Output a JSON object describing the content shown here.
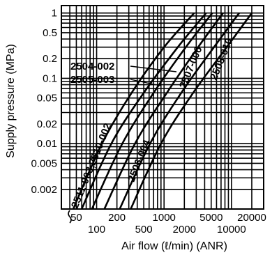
{
  "chart_data": {
    "type": "line",
    "title": "",
    "xlabel": "Air flow (ℓ/min) (ANR)",
    "ylabel": "Supply pressure (MPa)",
    "x_scale": "log",
    "y_scale": "log",
    "xlim": [
      30,
      30000
    ],
    "ylim": [
      0.001,
      1.3
    ],
    "grid": true,
    "x_ticks": [
      50,
      100,
      200,
      500,
      1000,
      2000,
      5000,
      10000,
      20000
    ],
    "x_tick_labels": [
      "50",
      "100",
      "200",
      "500",
      "1000",
      "2000",
      "5000",
      "10000",
      "20000"
    ],
    "y_ticks": [
      0.002,
      0.005,
      0.01,
      0.02,
      0.05,
      0.1,
      0.2,
      0.5,
      1
    ],
    "y_tick_labels": [
      "0.002",
      "0.005",
      "0.01",
      "0.02",
      "0.05",
      "0.1",
      "0.2",
      "0.5",
      "1"
    ],
    "series": [
      {
        "name": "2511-003,2510-002",
        "x": [
          45,
          120,
          330,
          1000,
          2800
        ],
        "y": [
          0.001,
          0.01,
          0.06,
          0.3,
          1
        ]
      },
      {
        "name": "2504-002",
        "x": [
          60,
          165,
          500,
          1600,
          4200
        ],
        "y": [
          0.001,
          0.01,
          0.06,
          0.3,
          1
        ]
      },
      {
        "name": "2505-003",
        "x": [
          85,
          240,
          700,
          2100,
          5200
        ],
        "y": [
          0.001,
          0.01,
          0.06,
          0.3,
          1
        ]
      },
      {
        "name": "2506-004",
        "x": [
          130,
          370,
          1100,
          3200,
          7500
        ],
        "y": [
          0.001,
          0.01,
          0.06,
          0.3,
          1
        ]
      },
      {
        "name": "2507-006",
        "x": [
          220,
          620,
          1800,
          5500,
          13000
        ],
        "y": [
          0.001,
          0.01,
          0.06,
          0.3,
          1
        ]
      },
      {
        "name": "2508-010",
        "x": [
          320,
          900,
          2700,
          8500,
          20000
        ],
        "y": [
          0.001,
          0.01,
          0.06,
          0.3,
          1
        ]
      }
    ],
    "annotations": [
      "2504-002",
      "2505-003",
      "2511-003,2510-002",
      "2506-004",
      "2507-006",
      "2508-010"
    ]
  }
}
